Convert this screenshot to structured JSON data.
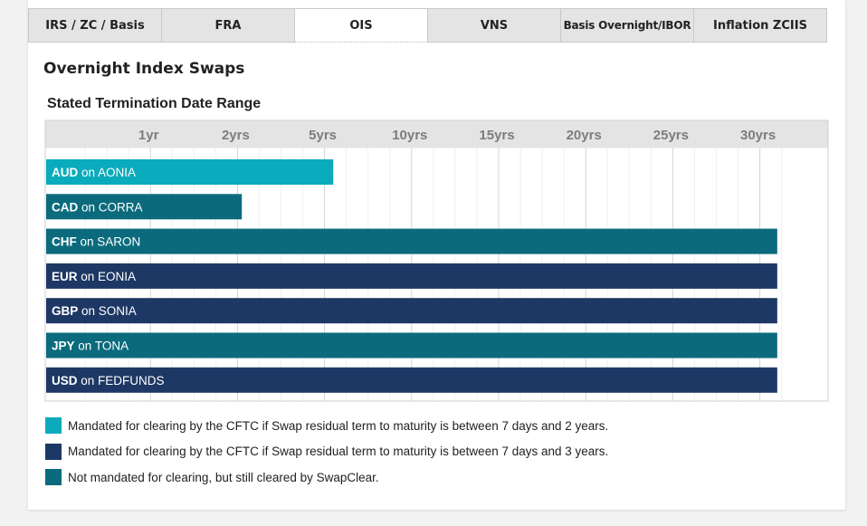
{
  "tabs": [
    {
      "label": "IRS / ZC / Basis",
      "active": false
    },
    {
      "label": "FRA",
      "active": false
    },
    {
      "label": "OIS",
      "active": true
    },
    {
      "label": "VNS",
      "active": false
    },
    {
      "label": "Basis Overnight/IBOR",
      "active": false
    },
    {
      "label": "Inflation ZCIIS",
      "active": false
    }
  ],
  "title": "Overnight Index Swaps",
  "chart_data": {
    "type": "bar",
    "orientation": "horizontal",
    "subtitle": "Stated Termination Date Range",
    "x_tick_labels": [
      "1yr",
      "2yrs",
      "5yrs",
      "10yrs",
      "15yrs",
      "20yrs",
      "25yrs",
      "30yrs"
    ],
    "x_axis_max_label_index": 8.2,
    "grid": true,
    "categories": [
      {
        "currency": "AUD",
        "index": "AONIA",
        "end": "5yrs",
        "end_tick_index": 3.1,
        "class": "cleared_2y"
      },
      {
        "currency": "CAD",
        "index": "CORRA",
        "end": "2yrs",
        "end_tick_index": 2.05,
        "class": "not_mandated"
      },
      {
        "currency": "CHF",
        "index": "SARON",
        "end": "31yrs",
        "end_tick_index": 8.2,
        "class": "not_mandated"
      },
      {
        "currency": "EUR",
        "index": "EONIA",
        "end": "31yrs",
        "end_tick_index": 8.2,
        "class": "cleared_3y"
      },
      {
        "currency": "GBP",
        "index": "SONIA",
        "end": "31yrs",
        "end_tick_index": 8.2,
        "class": "cleared_3y"
      },
      {
        "currency": "JPY",
        "index": "TONA",
        "end": "31yrs",
        "end_tick_index": 8.2,
        "class": "not_mandated"
      },
      {
        "currency": "USD",
        "index": "FEDFUNDS",
        "end": "31yrs",
        "end_tick_index": 8.2,
        "class": "cleared_3y"
      }
    ],
    "connector": "on",
    "legend": [
      {
        "key": "cleared_2y",
        "color": "#0aabbc",
        "label": "Mandated for clearing by the CFTC if Swap residual term to maturity is between 7 days and 2 years."
      },
      {
        "key": "cleared_3y",
        "color": "#1d3864",
        "label": "Mandated for clearing by the CFTC if Swap residual term to maturity is between 7 days and 3 years."
      },
      {
        "key": "not_mandated",
        "color": "#0b6b7d",
        "label": "Not mandated for clearing, but still cleared by SwapClear."
      }
    ],
    "legend_position": "bottom-left"
  }
}
